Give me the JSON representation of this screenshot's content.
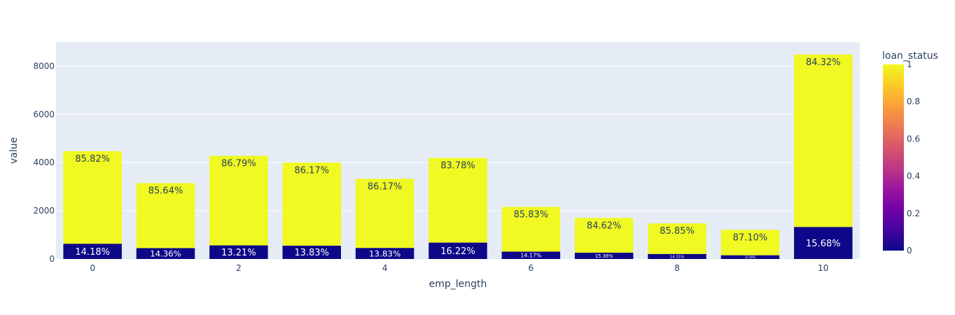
{
  "chart_data": {
    "type": "bar",
    "barmode": "stack",
    "xlabel": "emp_length",
    "ylabel": "value",
    "categories": [
      0,
      1,
      2,
      3,
      4,
      5,
      6,
      7,
      8,
      9,
      10
    ],
    "x_ticks": [
      0,
      2,
      4,
      6,
      8,
      10
    ],
    "ylim": [
      0,
      9000
    ],
    "y_ticks": [
      0,
      2000,
      4000,
      6000,
      8000
    ],
    "grid": true,
    "series": [
      {
        "loan_status": 0,
        "color": "#0d0887",
        "values": [
          634,
          452,
          565,
          553,
          460,
          680,
          306,
          262,
          209,
          156,
          1330
        ],
        "labels": [
          "14.18%",
          "14.36%",
          "13.21%",
          "13.83%",
          "13.83%",
          "16.22%",
          "14.17%",
          "15.38%",
          "14.15%",
          "12.90%",
          "15.68%"
        ]
      },
      {
        "loan_status": 1,
        "color": "#f0f921",
        "values": [
          3837,
          2696,
          3714,
          3446,
          2866,
          3513,
          1854,
          1440,
          1267,
          1054,
          7152
        ],
        "labels": [
          "85.82%",
          "85.64%",
          "86.79%",
          "86.17%",
          "86.17%",
          "83.78%",
          "85.83%",
          "84.62%",
          "85.85%",
          "87.10%",
          "84.32%"
        ]
      }
    ],
    "colorbar": {
      "title": "loan_status",
      "range": [
        0,
        1
      ],
      "ticks": [
        "0",
        "0.2",
        "0.4",
        "0.6",
        "0.8",
        "1"
      ],
      "colorscale": [
        "#0d0887",
        "#46039f",
        "#7201a8",
        "#9c179e",
        "#bd3786",
        "#d8576b",
        "#ed7953",
        "#fb9f3a",
        "#fdca26",
        "#f0f921"
      ]
    }
  }
}
